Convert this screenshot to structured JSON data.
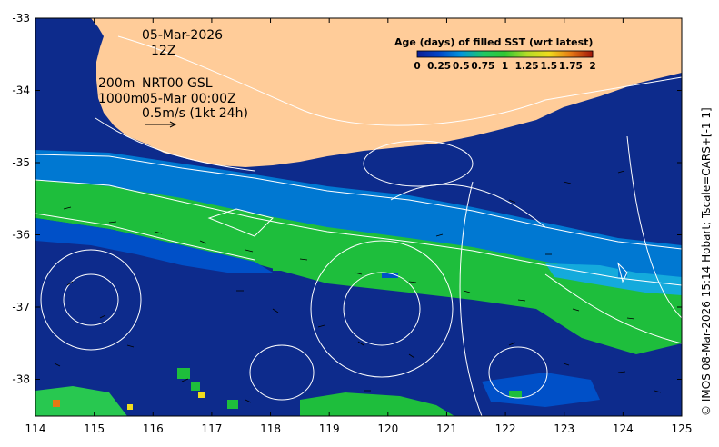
{
  "map": {
    "date_line": "05-Mar-2026",
    "time_line": "12Z",
    "isobath_200": "200m",
    "isobath_1000": "1000m",
    "product_line": "NRT00 GSL",
    "product_time": "05-Mar 00:00Z",
    "scale_label": "0.5m/s (1kt 24h)",
    "credit": "© IMOS 08-Mar-2026 15:14 Hobart; Tscale=CARS+[-1 1]"
  },
  "axes": {
    "x_ticks": [
      "114",
      "115",
      "116",
      "117",
      "118",
      "119",
      "120",
      "121",
      "122",
      "123",
      "124",
      "125"
    ],
    "y_ticks": [
      "-33",
      "-34",
      "-35",
      "-36",
      "-37",
      "-38"
    ]
  },
  "colorbar": {
    "title": "Age (days) of filled SST (wrt latest)",
    "tick_labels": [
      "0",
      "0.25",
      "0.5",
      "0.75",
      "1",
      "1.25",
      "1.5",
      "1.75",
      "2"
    ],
    "colors": [
      "#0a1e96",
      "#0046c8",
      "#0096dc",
      "#1ec864",
      "#32c832",
      "#b4dc28",
      "#f0dc1e",
      "#e67814",
      "#a0140a"
    ]
  },
  "colors": {
    "land": "#ffcc99",
    "ocean": "#0d2b8c"
  }
}
